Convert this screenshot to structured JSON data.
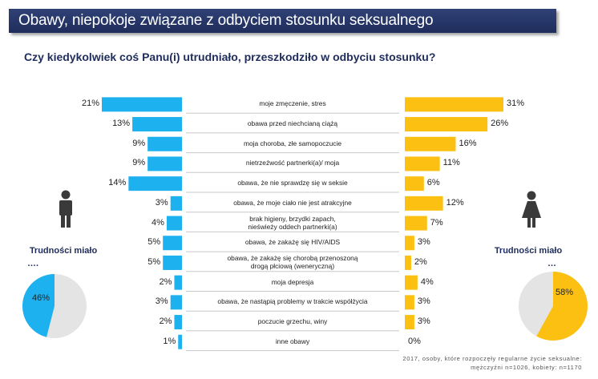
{
  "title": "Obawy, niepokoje związane z odbyciem stosunku seksualnego",
  "question": "Czy kiedykolwiek coś Panu(i) utrudniało, przeszkodziło w odbyciu stosunku?",
  "left_side": {
    "title": "Trudności miało",
    "ellipsis": "….",
    "pie_value": 46,
    "pie_label": "46%"
  },
  "right_side": {
    "title": "Trudności miało",
    "ellipsis": "…",
    "pie_value": 58,
    "pie_label": "58%"
  },
  "footnote": {
    "line1": "2017, osoby, które rozpoczęły regularne życie seksualne:",
    "line2": "mężczyźni n=1026, kobiety: n=1170"
  },
  "colors": {
    "men": "#1eb1f0",
    "women": "#fcc012",
    "title_bg": "#26366b",
    "pie_rest": "#e4e4e4"
  },
  "chart_data": {
    "type": "bar",
    "title": "Czy kiedykolwiek coś Panu(i) utrudniało, przeszkodziło w odbyciu stosunku?",
    "xlabel": "",
    "ylabel": "",
    "categories": [
      "moje zmęczenie, stres",
      "obawa przed niechcianą ciążą",
      "moja choroba, złe samopoczucie",
      "nietrzeźwość partnerki(a)/ moja",
      "obawa, że nie sprawdzę się w seksie",
      "obawa, że moje ciało nie jest atrakcyjne",
      "brak higieny, brzydki zapach,\nnieświeży oddech partnerki(a)",
      "obawa, że zakażę się HIV/AIDS",
      "obawa, że zakażę się chorobą przenoszoną\ndrogą płciową (weneryczną)",
      "moja depresja",
      "obawa, że nastąpią problemy w trakcie współżycia",
      "poczucie grzechu, winy",
      "inne obawy"
    ],
    "series": [
      {
        "name": "Mężczyźni",
        "values": [
          21,
          13,
          9,
          9,
          14,
          3,
          4,
          5,
          5,
          2,
          3,
          2,
          1
        ],
        "labels": [
          "21%",
          "13%",
          "9%",
          "9%",
          "14%",
          "3%",
          "4%",
          "5%",
          "5%",
          "2%",
          "3%",
          "2%",
          "1%"
        ]
      },
      {
        "name": "Kobiety",
        "values": [
          31,
          26,
          16,
          11,
          6,
          12,
          7,
          3,
          2,
          4,
          3,
          3,
          0
        ],
        "labels": [
          "31%",
          "26%",
          "16%",
          "11%",
          "6%",
          "12%",
          "7%",
          "3%",
          "2%",
          "4%",
          "3%",
          "3%",
          "0%"
        ]
      }
    ],
    "xlim": [
      0,
      31
    ]
  }
}
